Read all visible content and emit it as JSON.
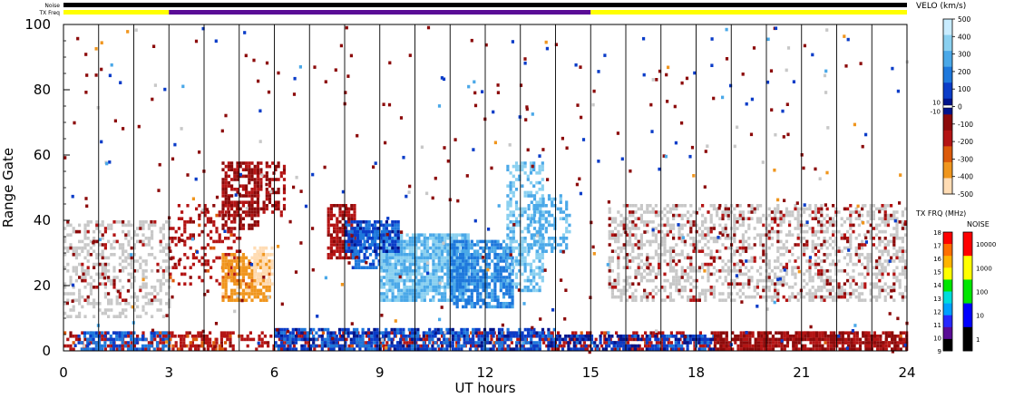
{
  "chart_data": {
    "type": "heatmap",
    "title": "",
    "xlabel": "UT hours",
    "ylabel": "Range Gate",
    "xlim": [
      0,
      24
    ],
    "ylim": [
      0,
      100
    ],
    "x_ticks": [
      0,
      3,
      6,
      9,
      12,
      15,
      18,
      21,
      24
    ],
    "x_tick_labels": [
      "0",
      "3",
      "6",
      "9",
      "12",
      "15",
      "18",
      "21",
      "24"
    ],
    "y_ticks": [
      0,
      20,
      40,
      60,
      80,
      100
    ],
    "y_tick_labels": [
      "0",
      "20",
      "40",
      "60",
      "80",
      "100"
    ],
    "grid": "vertical lines every hour",
    "top_strips": {
      "noise_label": "Noise",
      "txfreq_label": "TX Freq",
      "txfreq_segments": [
        {
          "start": 0,
          "end": 3,
          "color": "#ffff00"
        },
        {
          "start": 3,
          "end": 15,
          "color": "#5a0c96"
        },
        {
          "start": 15,
          "end": 24,
          "color": "#ffff00"
        }
      ],
      "noise_color": "#000000"
    },
    "ground_scatter_color": "#c8c8c8",
    "velocity_colorbar": {
      "title": "VELO (km/s)",
      "ticks": [
        "500",
        "400",
        "300",
        "200",
        "100",
        "0",
        "-100",
        "-200",
        "-300",
        "-400",
        "-500"
      ],
      "small_labels": [
        "10",
        "-10"
      ],
      "colors": [
        "#c8ecff",
        "#8ad0f0",
        "#4aa8e8",
        "#1e78dc",
        "#0a3cc8",
        "#00148c",
        "#8c0a0a",
        "#b41414",
        "#dc5a0a",
        "#f0961e",
        "#ffdcb4"
      ]
    },
    "txfreq_colorbar": {
      "title": "TX FRQ (MHz)",
      "ticks": [
        "18",
        "17",
        "16",
        "15",
        "14",
        "13",
        "12",
        "11",
        "10",
        "9"
      ],
      "colors": [
        "#ff0000",
        "#ff6e00",
        "#ffb400",
        "#ffff00",
        "#00e600",
        "#00dcdc",
        "#00a0ff",
        "#2828ff",
        "#5a0c96",
        "#000000"
      ]
    },
    "noise_colorbar": {
      "title": "NOISE",
      "ticks": [
        "10000",
        "1000",
        "100",
        "10",
        "1"
      ],
      "colors": [
        "#ff0000",
        "#ffff00",
        "#00e600",
        "#0000ff",
        "#000000"
      ]
    },
    "velocity_regions": [
      {
        "x0": 0.0,
        "x1": 24.0,
        "y0": 0,
        "y1": 6,
        "v": -150,
        "density": 0.45
      },
      {
        "x0": 0.4,
        "x1": 3.0,
        "y0": 0,
        "y1": 6,
        "v": 120,
        "density": 0.55
      },
      {
        "x0": 3.0,
        "x1": 4.6,
        "y0": 0,
        "y1": 5,
        "v": -200,
        "density": 0.35
      },
      {
        "x0": 6.0,
        "x1": 14.0,
        "y0": 0,
        "y1": 7,
        "v": 80,
        "density": 0.7
      },
      {
        "x0": 14.0,
        "x1": 18.5,
        "y0": 0,
        "y1": 5,
        "v": 60,
        "density": 0.6
      },
      {
        "x0": 18.5,
        "x1": 24.0,
        "y0": 0,
        "y1": 6,
        "v": -80,
        "density": 0.65
      },
      {
        "x0": 0.0,
        "x1": 3.0,
        "y0": 10,
        "y1": 40,
        "v": 0,
        "density": 0.35,
        "ground": true
      },
      {
        "x0": 15.5,
        "x1": 24.0,
        "y0": 15,
        "y1": 45,
        "v": 0,
        "density": 0.4,
        "ground": true
      },
      {
        "x0": 0.0,
        "x1": 3.2,
        "y0": 15,
        "y1": 40,
        "v": -100,
        "density": 0.08
      },
      {
        "x0": 15.5,
        "x1": 24.0,
        "y0": 15,
        "y1": 45,
        "v": -100,
        "density": 0.09
      },
      {
        "x0": 3.0,
        "x1": 5.0,
        "y0": 20,
        "y1": 45,
        "v": -150,
        "density": 0.25
      },
      {
        "x0": 4.5,
        "x1": 5.9,
        "y0": 15,
        "y1": 30,
        "v": -350,
        "density": 0.7
      },
      {
        "x0": 5.4,
        "x1": 5.9,
        "y0": 20,
        "y1": 32,
        "v": -480,
        "density": 0.6
      },
      {
        "x0": 4.5,
        "x1": 5.5,
        "y0": 38,
        "y1": 58,
        "v": -90,
        "density": 0.6
      },
      {
        "x0": 5.5,
        "x1": 6.3,
        "y0": 42,
        "y1": 58,
        "v": -90,
        "density": 0.4
      },
      {
        "x0": 7.5,
        "x1": 8.3,
        "y0": 28,
        "y1": 45,
        "v": -120,
        "density": 0.75
      },
      {
        "x0": 8.2,
        "x1": 9.2,
        "y0": 25,
        "y1": 38,
        "v": 120,
        "density": 0.65
      },
      {
        "x0": 9.0,
        "x1": 11.5,
        "y0": 15,
        "y1": 36,
        "v": 300,
        "density": 0.85
      },
      {
        "x0": 11.0,
        "x1": 12.8,
        "y0": 13,
        "y1": 34,
        "v": 180,
        "density": 0.75
      },
      {
        "x0": 12.6,
        "x1": 13.6,
        "y0": 18,
        "y1": 58,
        "v": 320,
        "density": 0.45
      },
      {
        "x0": 13.2,
        "x1": 14.4,
        "y0": 30,
        "y1": 48,
        "v": 260,
        "density": 0.45
      },
      {
        "x0": 8.0,
        "x1": 9.5,
        "y0": 30,
        "y1": 40,
        "v": 80,
        "density": 0.8
      }
    ]
  }
}
